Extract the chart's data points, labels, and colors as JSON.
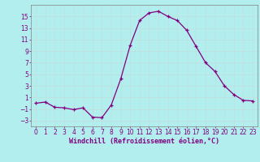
{
  "x": [
    0,
    1,
    2,
    3,
    4,
    5,
    6,
    7,
    8,
    9,
    10,
    11,
    12,
    13,
    14,
    15,
    16,
    17,
    18,
    19,
    20,
    21,
    22,
    23
  ],
  "y": [
    0.0,
    0.2,
    -0.7,
    -0.8,
    -1.1,
    -0.8,
    -2.4,
    -2.5,
    -0.3,
    4.2,
    10.0,
    14.3,
    15.6,
    15.9,
    15.0,
    14.3,
    12.6,
    9.8,
    7.0,
    5.5,
    3.0,
    1.5,
    0.5,
    0.4
  ],
  "line_color": "#800080",
  "marker": "+",
  "marker_size": 3,
  "background_color": "#b2eeee",
  "grid_color": "#c0e0e0",
  "xlabel": "Windchill (Refroidissement éolien,°C)",
  "ylabel": "",
  "title": "",
  "xlim": [
    -0.5,
    23.5
  ],
  "ylim": [
    -4,
    17
  ],
  "yticks": [
    -3,
    -1,
    1,
    3,
    5,
    7,
    9,
    11,
    13,
    15
  ],
  "xticks": [
    0,
    1,
    2,
    3,
    4,
    5,
    6,
    7,
    8,
    9,
    10,
    11,
    12,
    13,
    14,
    15,
    16,
    17,
    18,
    19,
    20,
    21,
    22,
    23
  ],
  "xlabel_color": "#800080",
  "tick_color": "#800080",
  "label_fontsize": 6.0,
  "tick_fontsize": 5.5,
  "spine_color": "#808080"
}
